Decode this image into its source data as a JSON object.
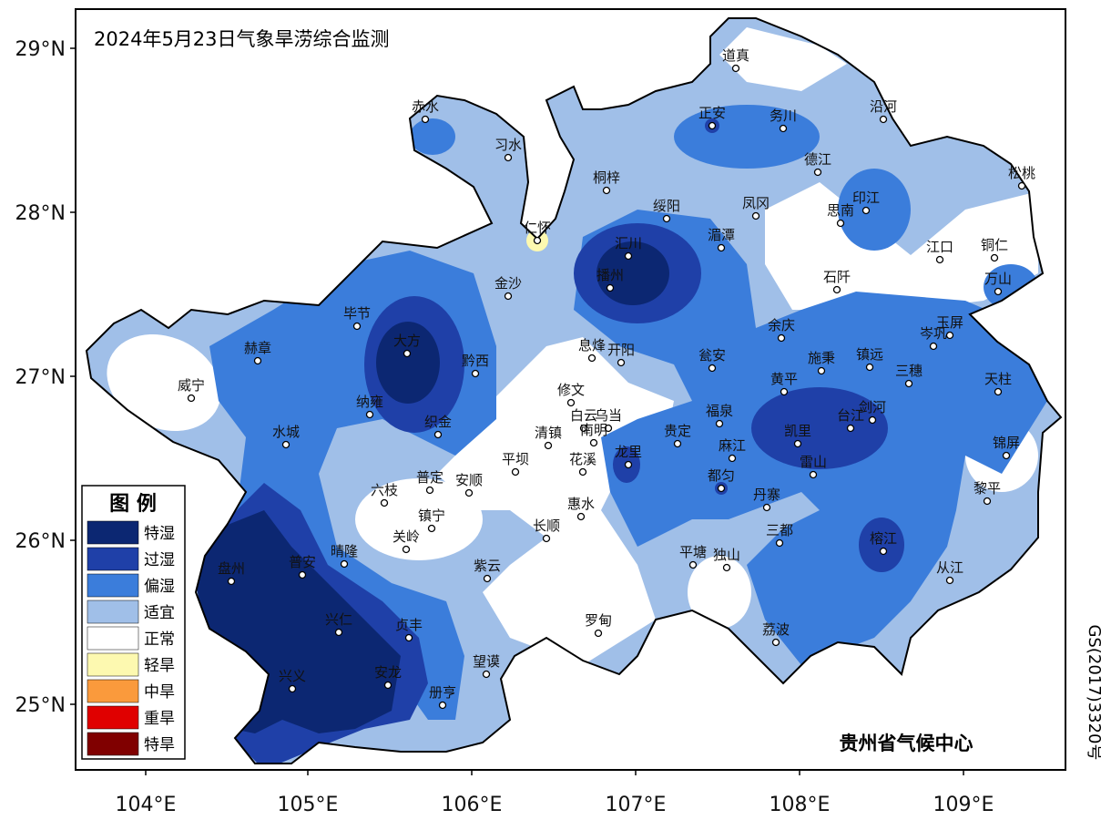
{
  "title": "2024年5月23日气象旱涝综合监测",
  "lat_labels": [
    "29°N",
    "28°N",
    "27°N",
    "26°N",
    "25°N"
  ],
  "lon_labels": [
    "104°E",
    "105°E",
    "106°E",
    "107°E",
    "108°E",
    "109°E"
  ],
  "legend": {
    "title": "图 例",
    "items": [
      {
        "label": "特湿",
        "color": "#0c2772"
      },
      {
        "label": "过湿",
        "color": "#1f40a8"
      },
      {
        "label": "偏湿",
        "color": "#3b7ddb"
      },
      {
        "label": "适宜",
        "color": "#a0bfe8"
      },
      {
        "label": "正常",
        "color": "#ffffff"
      },
      {
        "label": "轻旱",
        "color": "#fdf9b0"
      },
      {
        "label": "中旱",
        "color": "#fa9a3c"
      },
      {
        "label": "重旱",
        "color": "#e00000"
      },
      {
        "label": "特旱",
        "color": "#800000"
      }
    ]
  },
  "cities": [
    "道真",
    "正安",
    "务川",
    "沿河",
    "赤水",
    "习水",
    "德江",
    "松桃",
    "桐梓",
    "绥阳",
    "凤冈",
    "印江",
    "思南",
    "仁怀",
    "江口",
    "铜仁",
    "汇川",
    "湄潭",
    "万山",
    "金沙",
    "播州",
    "石阡",
    "毕节",
    "余庆",
    "岑巩",
    "玉屏",
    "赫章",
    "大方",
    "息烽",
    "开阳",
    "黔西",
    "施秉",
    "镇远",
    "三穗",
    "瓮安",
    "黄平",
    "天柱",
    "威宁",
    "修文",
    "纳雍",
    "白云",
    "乌当",
    "南明",
    "织金",
    "清镇",
    "福泉",
    "凯里",
    "台江",
    "剑河",
    "水城",
    "贵定",
    "麻江",
    "锦屏",
    "龙里",
    "都匀",
    "平坝",
    "花溪",
    "雷山",
    "六枝",
    "普定",
    "安顺",
    "镇宁",
    "丹寨",
    "黎平",
    "惠水",
    "关岭",
    "长顺",
    "三都",
    "榕江",
    "晴隆",
    "盘州",
    "普安",
    "紫云",
    "平塘",
    "独山",
    "从江",
    "兴仁",
    "贞丰",
    "罗甸",
    "荔波",
    "望谟",
    "安龙",
    "兴义",
    "册亨"
  ],
  "footer": "贵州省气候中心",
  "map_number": "GS(2017)3320号"
}
